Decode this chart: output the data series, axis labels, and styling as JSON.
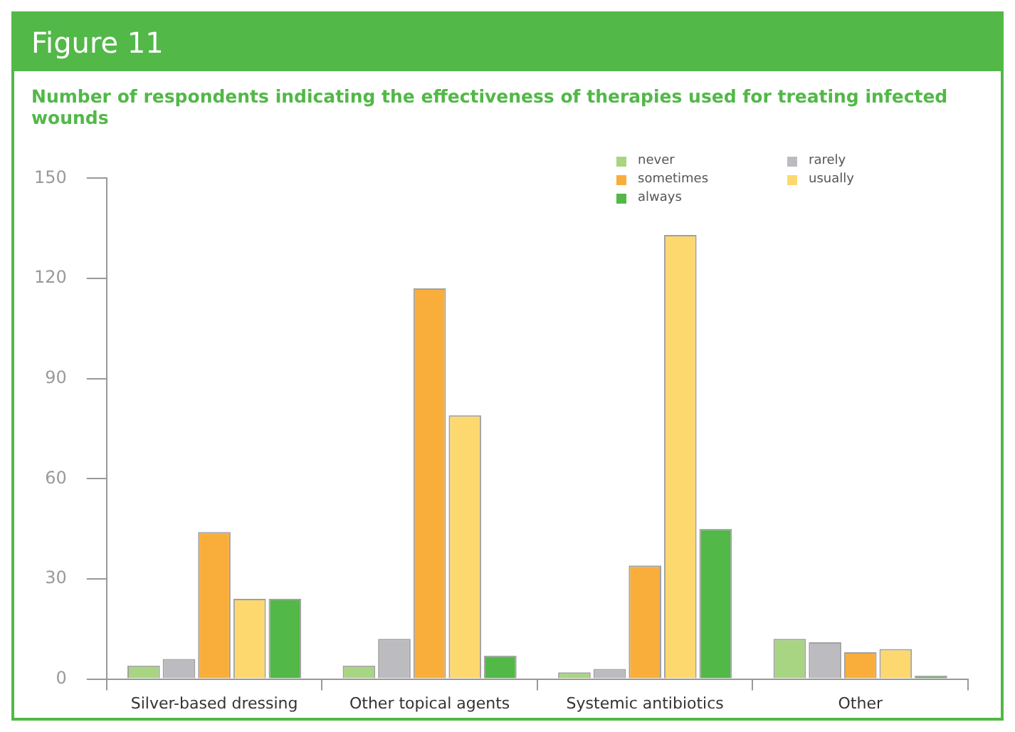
{
  "chart_data": {
    "type": "bar",
    "title": "Figure 11",
    "subtitle": "Number of respondents indicating the effectiveness of therapies used for treating infected wounds",
    "categories": [
      "Silver-based dressing",
      "Other topical agents",
      "Systemic antibiotics",
      "Other"
    ],
    "series": [
      {
        "name": "never",
        "color": "#a8d582",
        "values": [
          4,
          4,
          2,
          12
        ]
      },
      {
        "name": "rarely",
        "color": "#bcbcc0",
        "values": [
          6,
          12,
          3,
          11
        ]
      },
      {
        "name": "sometimes",
        "color": "#f9ae3c",
        "values": [
          44,
          117,
          34,
          8
        ]
      },
      {
        "name": "usually",
        "color": "#fdd86e",
        "values": [
          24,
          79,
          133,
          9
        ]
      },
      {
        "name": "always",
        "color": "#52b848",
        "values": [
          24,
          7,
          45,
          1
        ]
      }
    ],
    "ylim": [
      0,
      150
    ],
    "yticks": [
      0,
      30,
      60,
      90,
      120,
      150
    ],
    "grid": false,
    "legend": "top right"
  }
}
